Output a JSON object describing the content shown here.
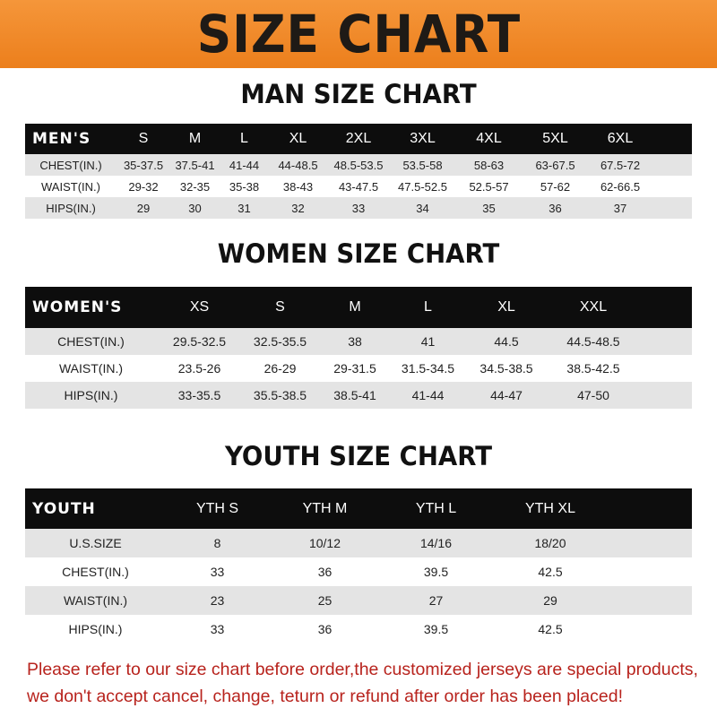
{
  "banner": {
    "title": "SIZE CHART",
    "color": "#f08a24"
  },
  "men": {
    "title": "MAN SIZE CHART",
    "header": "MEN'S",
    "sizes": [
      "S",
      "M",
      "L",
      "XL",
      "2XL",
      "3XL",
      "4XL",
      "5XL",
      "6XL"
    ],
    "rows": [
      {
        "label": "CHEST(IN.)",
        "values": [
          "35-37.5",
          "37.5-41",
          "41-44",
          "44-48.5",
          "48.5-53.5",
          "53.5-58",
          "58-63",
          "63-67.5",
          "67.5-72"
        ]
      },
      {
        "label": "WAIST(IN.)",
        "values": [
          "29-32",
          "32-35",
          "35-38",
          "38-43",
          "43-47.5",
          "47.5-52.5",
          "52.5-57",
          "57-62",
          "62-66.5"
        ]
      },
      {
        "label": "HIPS(IN.)",
        "values": [
          "29",
          "30",
          "31",
          "32",
          "33",
          "34",
          "35",
          "36",
          "37"
        ]
      }
    ]
  },
  "women": {
    "title": "WOMEN SIZE CHART",
    "header": "WOMEN'S",
    "sizes": [
      "XS",
      "S",
      "M",
      "L",
      "XL",
      "XXL"
    ],
    "rows": [
      {
        "label": "CHEST(IN.)",
        "values": [
          "29.5-32.5",
          "32.5-35.5",
          "38",
          "41",
          "44.5",
          "44.5-48.5"
        ]
      },
      {
        "label": "WAIST(IN.)",
        "values": [
          "23.5-26",
          "26-29",
          "29-31.5",
          "31.5-34.5",
          "34.5-38.5",
          "38.5-42.5"
        ]
      },
      {
        "label": "HIPS(IN.)",
        "values": [
          "33-35.5",
          "35.5-38.5",
          "38.5-41",
          "41-44",
          "44-47",
          "47-50"
        ]
      }
    ]
  },
  "youth": {
    "title": "YOUTH SIZE CHART",
    "header": "YOUTH",
    "sizes": [
      "YTH S",
      "YTH M",
      "YTH L",
      "YTH XL"
    ],
    "rows": [
      {
        "label": "U.S.SIZE",
        "values": [
          "8",
          "10/12",
          "14/16",
          "18/20"
        ]
      },
      {
        "label": "CHEST(IN.)",
        "values": [
          "33",
          "36",
          "39.5",
          "42.5"
        ]
      },
      {
        "label": "WAIST(IN.)",
        "values": [
          "23",
          "25",
          "27",
          "29"
        ]
      },
      {
        "label": "HIPS(IN.)",
        "values": [
          "33",
          "36",
          "39.5",
          "42.5"
        ]
      }
    ]
  },
  "note": {
    "line1": "Please refer to our size chart before order,the customized jerseys are special products,",
    "line2": "we don't accept cancel, change, teturn or refund after order has been placed!",
    "color": "#b8231d"
  }
}
